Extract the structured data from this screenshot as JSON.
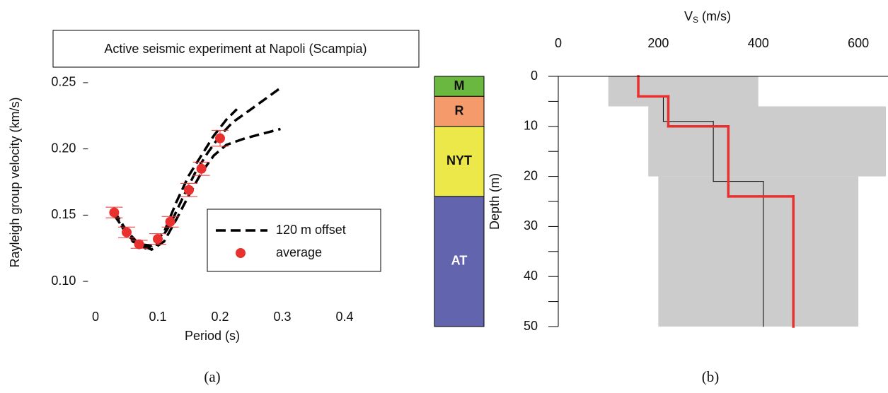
{
  "chart_data": [
    {
      "type": "line",
      "title": "Active seismic experiment at Napoli (Scampia)",
      "xlabel": "Period (s)",
      "ylabel": "Rayleigh group velocity (km/s)",
      "xlim": [
        -0.02,
        0.42
      ],
      "ylim": [
        0.09,
        0.26
      ],
      "xticks": [
        0,
        0.1,
        0.2,
        0.3,
        0.4
      ],
      "yticks": [
        {
          "value": 0.1,
          "label": "0.10"
        },
        0.15,
        {
          "value": 0.2,
          "label": "0.20"
        },
        0.25
      ],
      "legend": "lower right",
      "series": [
        {
          "name": "120 m offset",
          "color": "#000000",
          "dashed": true,
          "x": [
            0.03,
            0.05,
            0.07,
            0.09,
            0.11,
            0.13,
            0.15,
            0.17,
            0.19,
            0.21,
            0.227
          ],
          "values": [
            0.153,
            0.138,
            0.128,
            0.127,
            0.137,
            0.16,
            0.18,
            0.195,
            0.21,
            0.222,
            0.23
          ]
        },
        {
          "color": "#000000",
          "dashed": true,
          "x": [
            0.03,
            0.05,
            0.08,
            0.1,
            0.12,
            0.14,
            0.16,
            0.18,
            0.2,
            0.22,
            0.25,
            0.297
          ],
          "values": [
            0.152,
            0.135,
            0.125,
            0.128,
            0.143,
            0.163,
            0.182,
            0.197,
            0.21,
            0.22,
            0.23,
            0.246
          ]
        },
        {
          "color": "#000000",
          "dashed": true,
          "x": [
            0.03,
            0.06,
            0.09,
            0.11,
            0.13,
            0.15,
            0.17,
            0.19,
            0.21,
            0.24,
            0.297
          ],
          "values": [
            0.15,
            0.13,
            0.124,
            0.13,
            0.147,
            0.165,
            0.182,
            0.195,
            0.203,
            0.208,
            0.215
          ]
        },
        {
          "name": "average",
          "color": "#e8312f",
          "marker": "circle",
          "x": [
            0.03,
            0.05,
            0.07,
            0.1,
            0.12,
            0.15,
            0.17,
            0.2
          ],
          "values": [
            0.152,
            0.137,
            0.128,
            0.132,
            0.145,
            0.169,
            0.185,
            0.208
          ],
          "errors": [
            0.004,
            0.004,
            0.003,
            0.004,
            0.004,
            0.005,
            0.005,
            0.006
          ]
        }
      ]
    },
    {
      "type": "strata",
      "ylim": [
        0,
        50
      ],
      "layers": [
        {
          "label": "M",
          "top": 0,
          "bottom": 4,
          "color": "#6ab83f",
          "label_color": "#111111"
        },
        {
          "label": "R",
          "top": 4,
          "bottom": 10,
          "color": "#f59a6a",
          "label_color": "#111111"
        },
        {
          "label": "NYT",
          "top": 10,
          "bottom": 24,
          "color": "#ece84a",
          "label_color": "#111111"
        },
        {
          "label": "AT",
          "top": 24,
          "bottom": 50,
          "color": "#6264ae",
          "label_color": "#ffffff"
        }
      ]
    },
    {
      "type": "step_profile",
      "xlabel": "V",
      "xlabel_sub": "S",
      "xlabel_unit": "(m/s)",
      "ylabel": "Depth (m)",
      "xlim": [
        0,
        655
      ],
      "xticks": [
        0,
        200,
        400,
        600
      ],
      "ylim": [
        0,
        50
      ],
      "yticks": [
        0,
        10,
        20,
        30,
        40,
        50
      ],
      "minor_yticks": [
        5,
        15,
        25,
        35,
        45
      ],
      "band": {
        "color": "#cccccc",
        "depths": [
          0,
          6,
          20,
          50
        ],
        "min": [
          100,
          180,
          200
        ],
        "max": [
          400,
          655,
          600
        ]
      },
      "series": [
        {
          "color": "#000000",
          "width": 1,
          "depths": [
            0,
            4,
            9,
            21,
            50
          ],
          "values": [
            160,
            210,
            310,
            410
          ]
        },
        {
          "color": "#e8312f",
          "width": 3.5,
          "depths": [
            0,
            4,
            10,
            24,
            50
          ],
          "values": [
            160,
            220,
            340,
            470
          ]
        }
      ]
    }
  ],
  "captions": [
    "(a)",
    "(b)"
  ]
}
